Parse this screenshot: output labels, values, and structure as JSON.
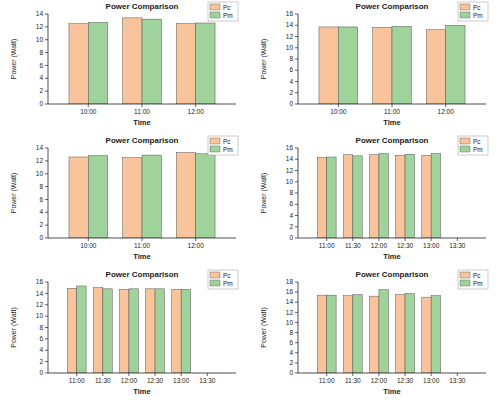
{
  "chart_data": [
    {
      "type": "bar",
      "title": "Power Comparison",
      "x_label": "Time",
      "y_label": "Power (Watt)",
      "categories": [
        "10:00",
        "11:00",
        "12:00"
      ],
      "series": [
        {
          "name": "Pc",
          "color": "#f9c49c",
          "values": [
            12.5,
            13.4,
            12.5
          ]
        },
        {
          "name": "Pm",
          "color": "#9fd39b",
          "values": [
            12.7,
            13.2,
            12.6
          ]
        }
      ],
      "ylim": [
        0,
        14
      ],
      "yticks": [
        0,
        2,
        4,
        6,
        8,
        10,
        12,
        14
      ],
      "legend": "upper right"
    },
    {
      "type": "bar",
      "title": "Power Comparison",
      "x_label": "Time",
      "y_label": "Power (Watt)",
      "categories": [
        "10:00",
        "11:00",
        "12:00"
      ],
      "series": [
        {
          "name": "Pc",
          "color": "#f9c49c",
          "values": [
            13.7,
            13.6,
            13.2
          ]
        },
        {
          "name": "Pm",
          "color": "#9fd39b",
          "values": [
            13.7,
            13.8,
            14.0
          ]
        }
      ],
      "ylim": [
        0,
        16
      ],
      "yticks": [
        0,
        2,
        4,
        6,
        8,
        10,
        12,
        14,
        16
      ],
      "legend": "upper right"
    },
    {
      "type": "bar",
      "title": "Power Comparison",
      "x_label": "Time",
      "y_label": "Power (Watt)",
      "categories": [
        "10:00",
        "11:00",
        "12:00"
      ],
      "series": [
        {
          "name": "Pc",
          "color": "#f9c49c",
          "values": [
            12.6,
            12.5,
            13.3
          ]
        },
        {
          "name": "Pm",
          "color": "#9fd39b",
          "values": [
            12.8,
            12.9,
            13.1
          ]
        }
      ],
      "ylim": [
        0,
        14
      ],
      "yticks": [
        0,
        2,
        4,
        6,
        8,
        10,
        12,
        14
      ],
      "legend": "upper right"
    },
    {
      "type": "bar",
      "title": "Power Comparison",
      "x_label": "Time",
      "y_label": "Power (Watt)",
      "categories": [
        "11:00",
        "11:30",
        "12:00",
        "12:30",
        "13:00",
        "13:30"
      ],
      "series": [
        {
          "name": "Pc",
          "color": "#f9c49c",
          "values": [
            14.3,
            14.8,
            14.8,
            14.7,
            14.7,
            null
          ]
        },
        {
          "name": "Pm",
          "color": "#9fd39b",
          "values": [
            14.4,
            14.6,
            15.0,
            14.9,
            15.0,
            null
          ]
        }
      ],
      "ylim": [
        0,
        16
      ],
      "yticks": [
        0,
        2,
        4,
        6,
        8,
        10,
        12,
        14,
        16
      ],
      "legend": "upper right"
    },
    {
      "type": "bar",
      "title": "Power Comparison",
      "x_label": "Time",
      "y_label": "Power (Watt)",
      "categories": [
        "11:00",
        "11:30",
        "12:00",
        "12:30",
        "13:00",
        "13:30"
      ],
      "series": [
        {
          "name": "Pc",
          "color": "#f9c49c",
          "values": [
            14.9,
            15.0,
            14.7,
            14.8,
            14.7,
            null
          ]
        },
        {
          "name": "Pm",
          "color": "#9fd39b",
          "values": [
            15.3,
            14.8,
            14.8,
            14.8,
            14.7,
            null
          ]
        }
      ],
      "ylim": [
        0,
        16
      ],
      "yticks": [
        0,
        2,
        4,
        6,
        8,
        10,
        12,
        14,
        16
      ],
      "legend": "upper right"
    },
    {
      "type": "bar",
      "title": "Power Comparison",
      "x_label": "Time",
      "y_label": "Power (Watt)",
      "categories": [
        "11:00",
        "11:30",
        "12:00",
        "12:30",
        "13:00",
        "13:30"
      ],
      "series": [
        {
          "name": "Pc",
          "color": "#f9c49c",
          "values": [
            15.4,
            15.3,
            15.2,
            15.5,
            15.0,
            null
          ]
        },
        {
          "name": "Pm",
          "color": "#9fd39b",
          "values": [
            15.4,
            15.5,
            16.5,
            15.7,
            15.3,
            null
          ]
        }
      ],
      "ylim": [
        0,
        18
      ],
      "yticks": [
        0,
        2,
        4,
        6,
        8,
        10,
        12,
        14,
        16,
        18
      ],
      "legend": "upper right"
    }
  ]
}
